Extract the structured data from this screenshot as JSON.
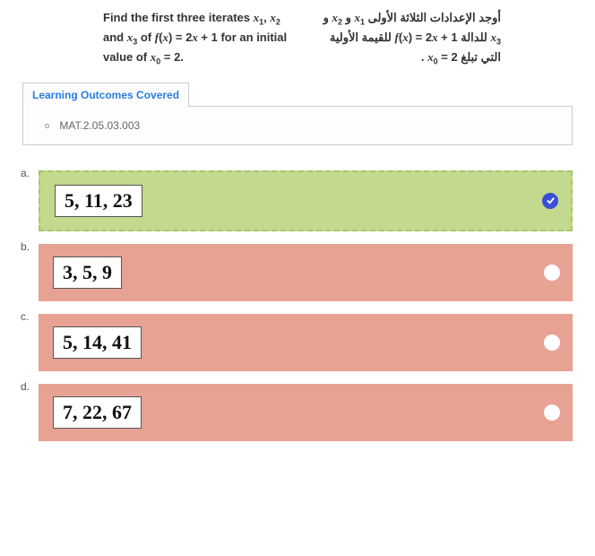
{
  "question": {
    "english_html": "Find the first three iterates <span class='italic-var'>x</span><span class='sub'>1</span>, <span class='italic-var'>x</span><span class='sub'>2</span> and <span class='italic-var'>x</span><span class='sub'>3</span> of <span class='italic-var'>f</span>(<span class='italic-var'>x</span>) = 2<span class='italic-var'>x</span> + 1 for an initial value of <span class='italic-var'>x</span><span class='sub'>0</span> = 2.",
    "arabic_html": "أوجد الإعدادات الثلاثة الأولى <span class='italic-var'>x</span><span class='sub'>1</span> و <span class='italic-var'>x</span><span class='sub'>2</span> و <span class='italic-var'>x</span><span class='sub'>3</span> للدالة 1 + <span class='italic-var'>f</span>(<span class='italic-var'>x</span>) = 2<span class='italic-var'>x</span> للقيمة الأولية التي تبلغ 2 = <span class='italic-var'>x</span><span class='sub'>0</span> ."
  },
  "outcomes": {
    "header": "Learning Outcomes Covered",
    "header_color": "#2a7de1",
    "item": "MAT.2.05.03.003"
  },
  "options": [
    {
      "label": "a.",
      "text": "5, 11, 23",
      "correct": true
    },
    {
      "label": "b.",
      "text": "3, 5, 9",
      "correct": false
    },
    {
      "label": "c.",
      "text": "5, 14, 41",
      "correct": false
    },
    {
      "label": "d.",
      "text": "7, 22, 67",
      "correct": false
    }
  ],
  "colors": {
    "correct_bg": "#c3d98e",
    "correct_border": "#a9c56a",
    "wrong_bg": "#e8a293",
    "check_bg": "#3a4fd8"
  }
}
